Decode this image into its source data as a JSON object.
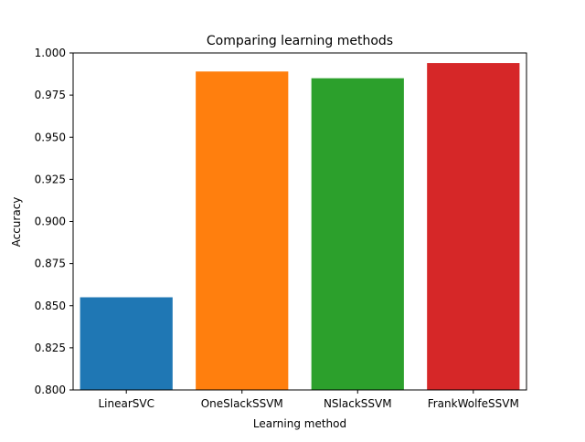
{
  "chart_data": {
    "type": "bar",
    "title": "Comparing learning methods",
    "xlabel": "Learning method",
    "ylabel": "Accuracy",
    "categories": [
      "LinearSVC",
      "OneSlackSSVM",
      "NSlackSSVM",
      "FrankWolfeSSVM"
    ],
    "values": [
      0.855,
      0.989,
      0.985,
      0.994
    ],
    "colors": [
      "#1f77b4",
      "#ff7f0e",
      "#2ca02c",
      "#d62728"
    ],
    "ylim": [
      0.8,
      1.0
    ],
    "yticks": [
      "0.800",
      "0.825",
      "0.850",
      "0.875",
      "0.900",
      "0.925",
      "0.950",
      "0.975",
      "1.000"
    ],
    "grid": false,
    "legend": "none"
  }
}
